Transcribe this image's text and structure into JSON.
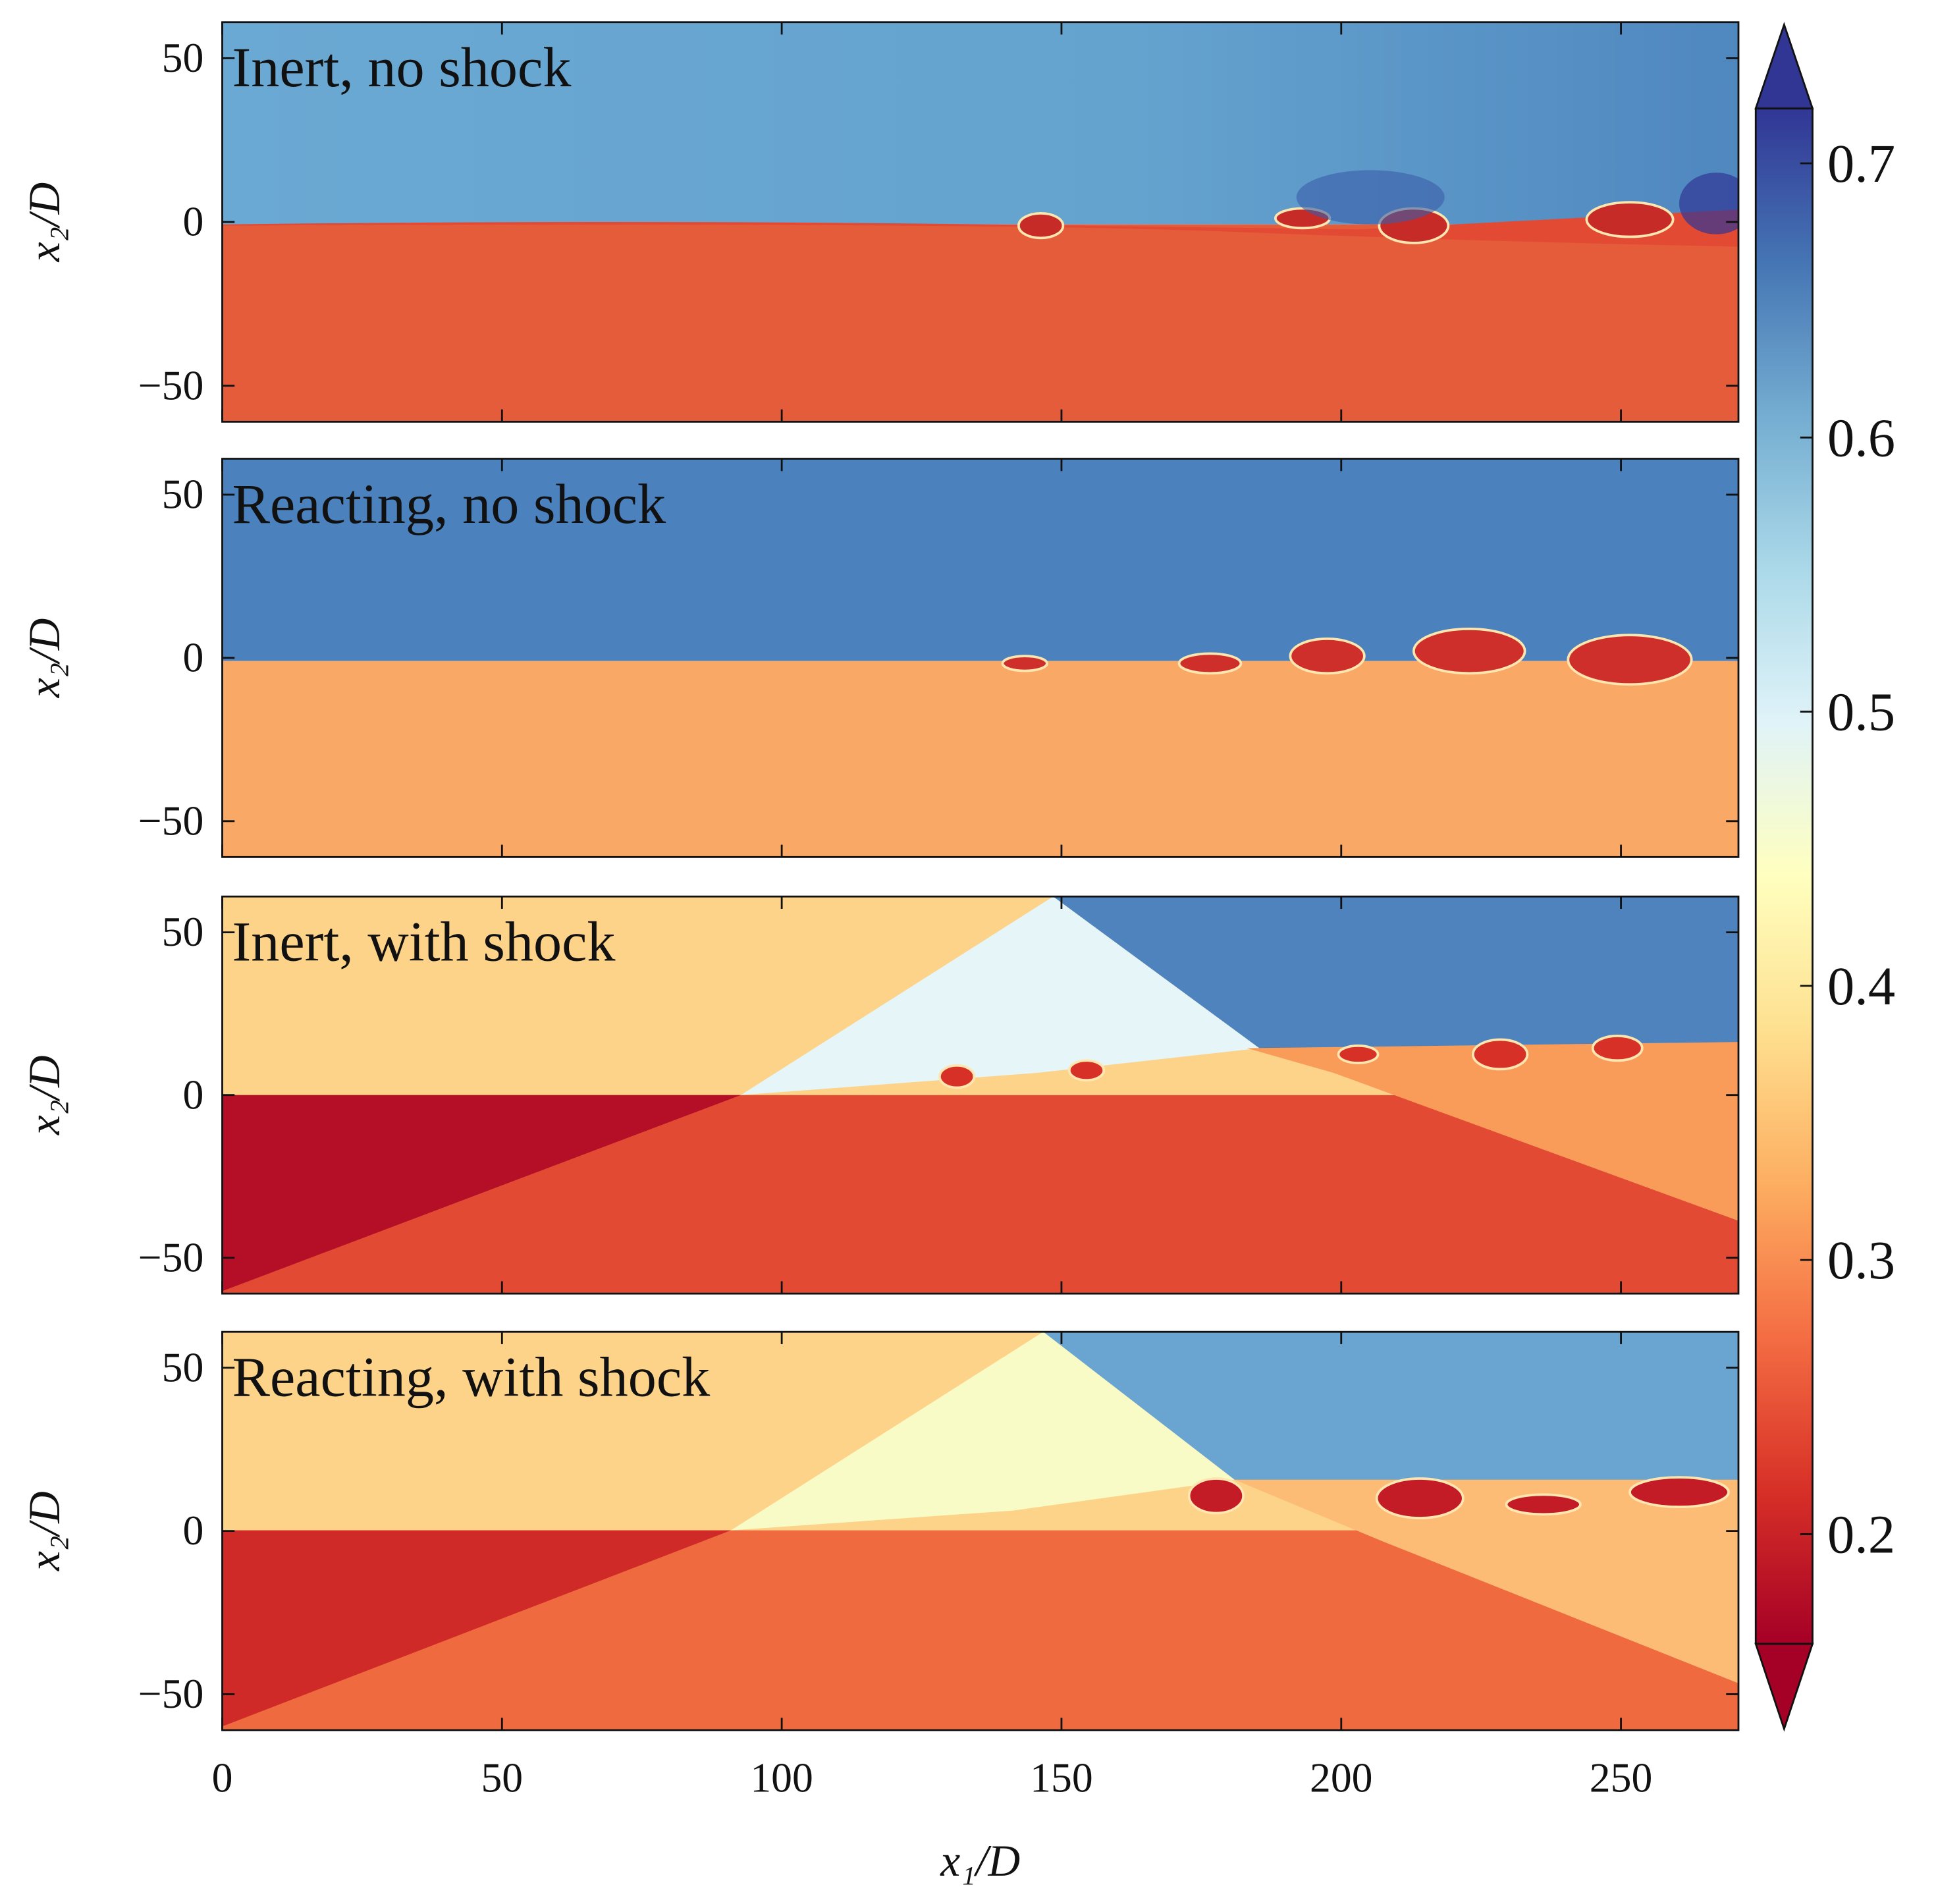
{
  "chart_data": [
    {
      "type": "heatmap",
      "title": "Inert, no shock",
      "ylabel": "x₂/D",
      "xlim": [
        0,
        271
      ],
      "ylim": [
        -61,
        61
      ],
      "yticks": [
        {
          "value": -50,
          "label": "−50"
        },
        0,
        50
      ]
    },
    {
      "type": "heatmap",
      "title": "Reacting, no shock",
      "ylabel": "x₂/D",
      "xlim": [
        0,
        271
      ],
      "ylim": [
        -61,
        61
      ],
      "yticks": [
        {
          "value": -50,
          "label": "−50"
        },
        0,
        50
      ]
    },
    {
      "type": "heatmap",
      "title": "Inert, with shock",
      "ylabel": "x₂/D",
      "xlim": [
        0,
        271
      ],
      "ylim": [
        -61,
        61
      ],
      "yticks": [
        {
          "value": -50,
          "label": "−50"
        },
        0,
        50
      ]
    },
    {
      "type": "heatmap",
      "title": "Reacting, with shock",
      "ylabel": "x₂/D",
      "xlabel": "x₁/D",
      "xlim": [
        0,
        271
      ],
      "ylim": [
        -61,
        61
      ],
      "yticks": [
        {
          "value": -50,
          "label": "−50"
        },
        0,
        50
      ],
      "xticks": [
        0,
        50,
        100,
        150,
        200,
        250
      ]
    },
    {
      "type": "colorbar",
      "ylim": [
        0.16,
        0.72
      ],
      "yticks": [
        0.2,
        0.3,
        0.4,
        0.5,
        0.6,
        0.7
      ],
      "colors": [
        "#a50026",
        "#d73027",
        "#f46d43",
        "#fdae61",
        "#fee090",
        "#ffffbf",
        "#e0f3f8",
        "#abd9e9",
        "#74add1",
        "#4575b4",
        "#313695"
      ]
    }
  ]
}
